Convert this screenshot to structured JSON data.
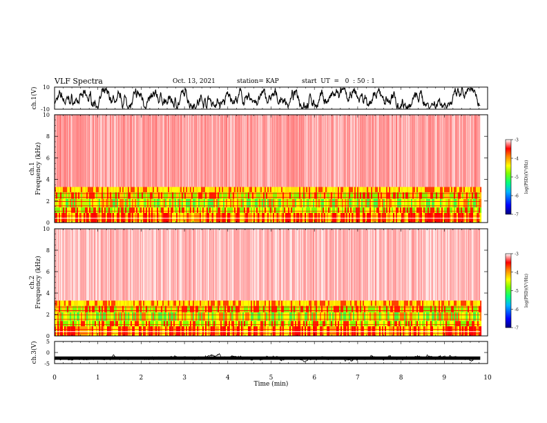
{
  "header": {
    "title": "VLF Spectra",
    "date": "Oct. 13, 2021",
    "station": "station= KAP",
    "start": "start  UT  =   0  : 50 : 1"
  },
  "chart_data": [
    {
      "type": "line",
      "id": "ch1-waveform",
      "ylabel": "ch.1(V)",
      "ylim": [
        -10,
        10
      ],
      "ytick_labels": [
        "10",
        "-10"
      ],
      "xlim": [
        0,
        10
      ],
      "x_data_range": [
        0,
        9.83
      ]
    },
    {
      "type": "heatmap",
      "id": "ch1-spectrogram",
      "ylabel": "ch.1\nFrequency  (kHz)",
      "ylabel_lines": [
        "ch.1",
        "Frequency  (kHz)"
      ],
      "ylim": [
        0,
        10
      ],
      "ytick_labels": [
        "0",
        "2",
        "4",
        "6",
        "8",
        "10"
      ],
      "xlim": [
        0,
        10
      ],
      "colorbar": {
        "label": "log(PSD)(V²/Hz)",
        "range": [
          -7,
          -3
        ],
        "tick_labels": [
          "-3",
          "-4",
          "-5",
          "-6",
          "-7"
        ]
      }
    },
    {
      "type": "heatmap",
      "id": "ch2-spectrogram",
      "ylabel": "ch.2\nFrequency  (kHz)",
      "ylabel_lines": [
        "ch.2",
        "Frequency  (kHz)"
      ],
      "ylim": [
        0,
        10
      ],
      "ytick_labels": [
        "0",
        "2",
        "4",
        "6",
        "8",
        "10"
      ],
      "xlim": [
        0,
        10
      ],
      "colorbar": {
        "label": "log(PSD)(V²/Hz)",
        "range": [
          -7,
          -3
        ],
        "tick_labels": [
          "-3",
          "-4",
          "-5",
          "-6",
          "-7"
        ]
      }
    },
    {
      "type": "line",
      "id": "ch3-waveform",
      "ylabel": "ch.3(V)",
      "ylim": [
        -5,
        5
      ],
      "ytick_labels": [
        "5",
        "0",
        "-5"
      ],
      "xlim": [
        0,
        10
      ],
      "xlabel": "Time  (min)",
      "xtick_labels": [
        "0",
        "1",
        "2",
        "3",
        "4",
        "5",
        "6",
        "7",
        "8",
        "9",
        "10"
      ]
    }
  ]
}
